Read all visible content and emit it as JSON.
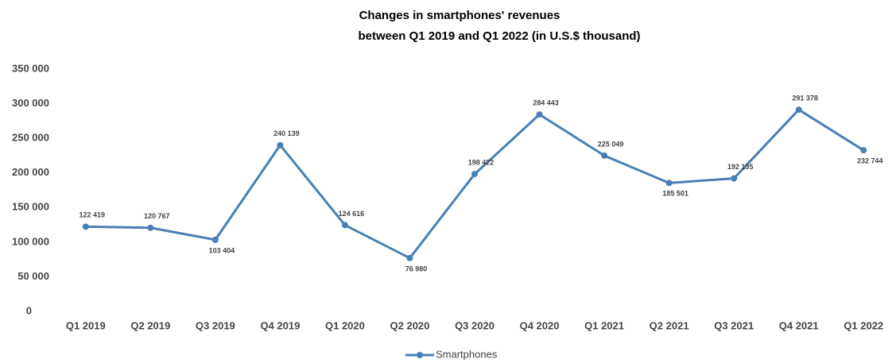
{
  "chart_data": {
    "type": "line",
    "title": [
      "Changes in  smartphones' revenues",
      "between Q1 2019 and Q1 2022 (in U.S.$ thousand)"
    ],
    "categories": [
      "Q1 2019",
      "Q2 2019",
      "Q3 2019",
      "Q4 2019",
      "Q1 2020",
      "Q2 2020",
      "Q3 2020",
      "Q4 2020",
      "Q1 2021",
      "Q2 2021",
      "Q3 2021",
      "Q4 2021",
      "Q1 2022"
    ],
    "series": [
      {
        "name": "Smartphones",
        "color": "#4a7fb5",
        "values": [
          122419,
          120767,
          103404,
          240139,
          124616,
          76980,
          198422,
          284443,
          225049,
          185501,
          192135,
          291378,
          232744
        ],
        "value_labels": [
          "122 419",
          "120 767",
          "103 404",
          "240 139",
          "124 616",
          "76 980",
          "198 422",
          "284 443",
          "225 049",
          "185 501",
          "192 135",
          "291 378",
          "232 744"
        ]
      }
    ],
    "ylim": [
      0,
      350000
    ],
    "yticks": [
      0,
      {
        "value": 50000,
        "label": "50 000"
      },
      {
        "value": 100000,
        "label": "100 000"
      },
      {
        "value": 150000,
        "label": "150 000"
      },
      {
        "value": 200000,
        "label": "200 000"
      },
      {
        "value": 250000,
        "label": "250 000"
      },
      {
        "value": 300000,
        "label": "300 000"
      },
      {
        "value": 350000,
        "label": "350 000"
      }
    ],
    "grid": false,
    "legend": "bottom"
  }
}
